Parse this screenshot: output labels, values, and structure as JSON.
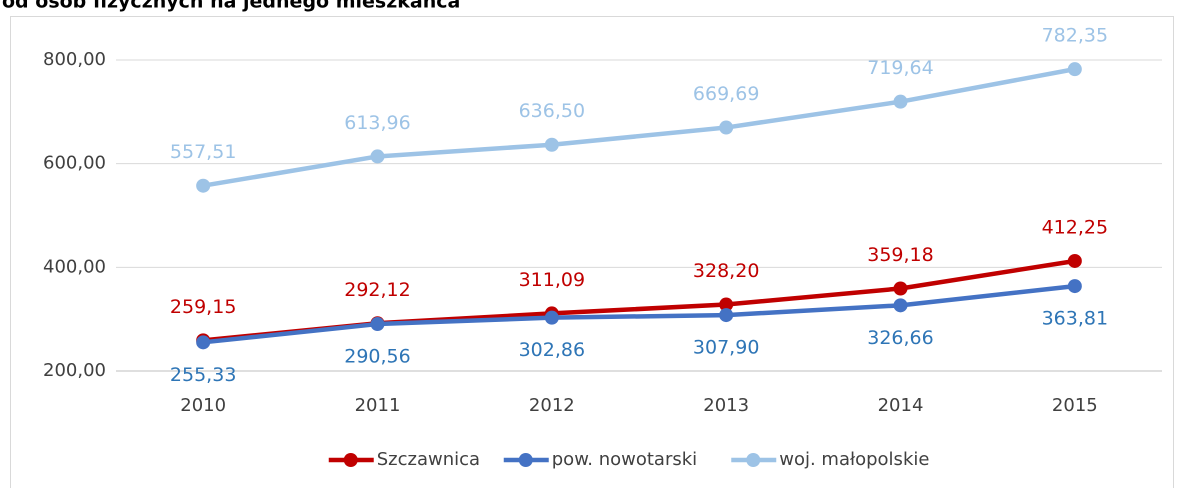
{
  "chart_data": {
    "type": "line",
    "title": "od osób fizycznych na jednego mieszkańca",
    "categories": [
      "2010",
      "2011",
      "2012",
      "2013",
      "2014",
      "2015"
    ],
    "series": [
      {
        "name": "Szczawnica",
        "color": "#c00000",
        "label_color": "#c00000",
        "values": [
          259.15,
          292.12,
          311.09,
          328.2,
          359.18,
          412.25
        ],
        "value_labels": [
          "259,15",
          "292,12",
          "311,09",
          "328,20",
          "359,18",
          "412,25"
        ]
      },
      {
        "name": "pow. nowotarski",
        "color": "#4472c4",
        "label_color": "#2e75b6",
        "values": [
          255.33,
          290.56,
          302.86,
          307.9,
          326.66,
          363.81
        ],
        "value_labels": [
          "255,33",
          "290,56",
          "302,86",
          "307,90",
          "326,66",
          "363,81"
        ]
      },
      {
        "name": "woj. małopolskie",
        "color": "#9dc3e6",
        "label_color": "#9dc3e6",
        "values": [
          557.51,
          613.96,
          636.5,
          669.69,
          719.64,
          782.35
        ],
        "value_labels": [
          "557,51",
          "613,96",
          "636,50",
          "669,69",
          "719,64",
          "782,35"
        ]
      }
    ],
    "ylim": [
      200,
      800
    ],
    "yticks": [
      {
        "value": 200,
        "label": "200,00"
      },
      {
        "value": 400,
        "label": "400,00"
      },
      {
        "value": 600,
        "label": "600,00"
      },
      {
        "value": 800,
        "label": "800,00"
      }
    ],
    "grid": true,
    "legend": "bottom"
  }
}
